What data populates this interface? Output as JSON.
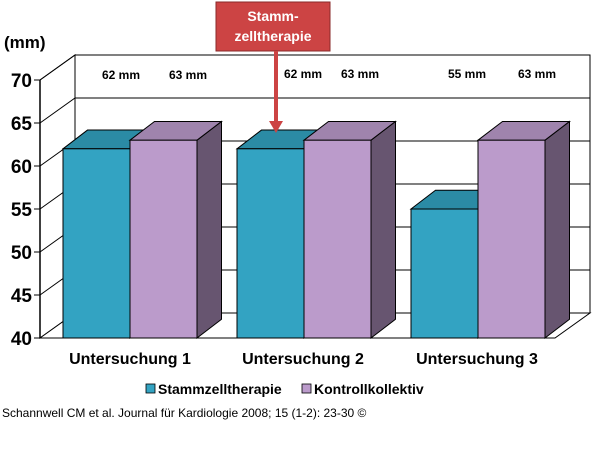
{
  "chart_data": {
    "type": "bar",
    "ylabel": "(mm)",
    "ylim": [
      40,
      70
    ],
    "yticks": [
      40,
      45,
      50,
      55,
      60,
      65,
      70
    ],
    "categories": [
      "Untersuchung 1",
      "Untersuchung 2",
      "Untersuchung 3"
    ],
    "series": [
      {
        "name": "Stammzelltherapie",
        "values": [
          62,
          62,
          55
        ],
        "labels": [
          "62 mm",
          "62 mm",
          "55 mm"
        ],
        "color": "#33a3c2"
      },
      {
        "name": "Kontrollkollektiv",
        "values": [
          63,
          63,
          63
        ],
        "labels": [
          "63 mm",
          "63 mm",
          "63 mm"
        ],
        "color": "#bb9bcb"
      }
    ],
    "annotation": {
      "text_lines": [
        "Stamm-",
        "zelltherapie"
      ],
      "color": "#cc4444",
      "points_to_category": 1
    },
    "grid": true,
    "legend": "bottom-center"
  },
  "source": "Schannwell CM et al. Journal für Kardiologie 2008; 15 (1-2): 23-30 ©"
}
